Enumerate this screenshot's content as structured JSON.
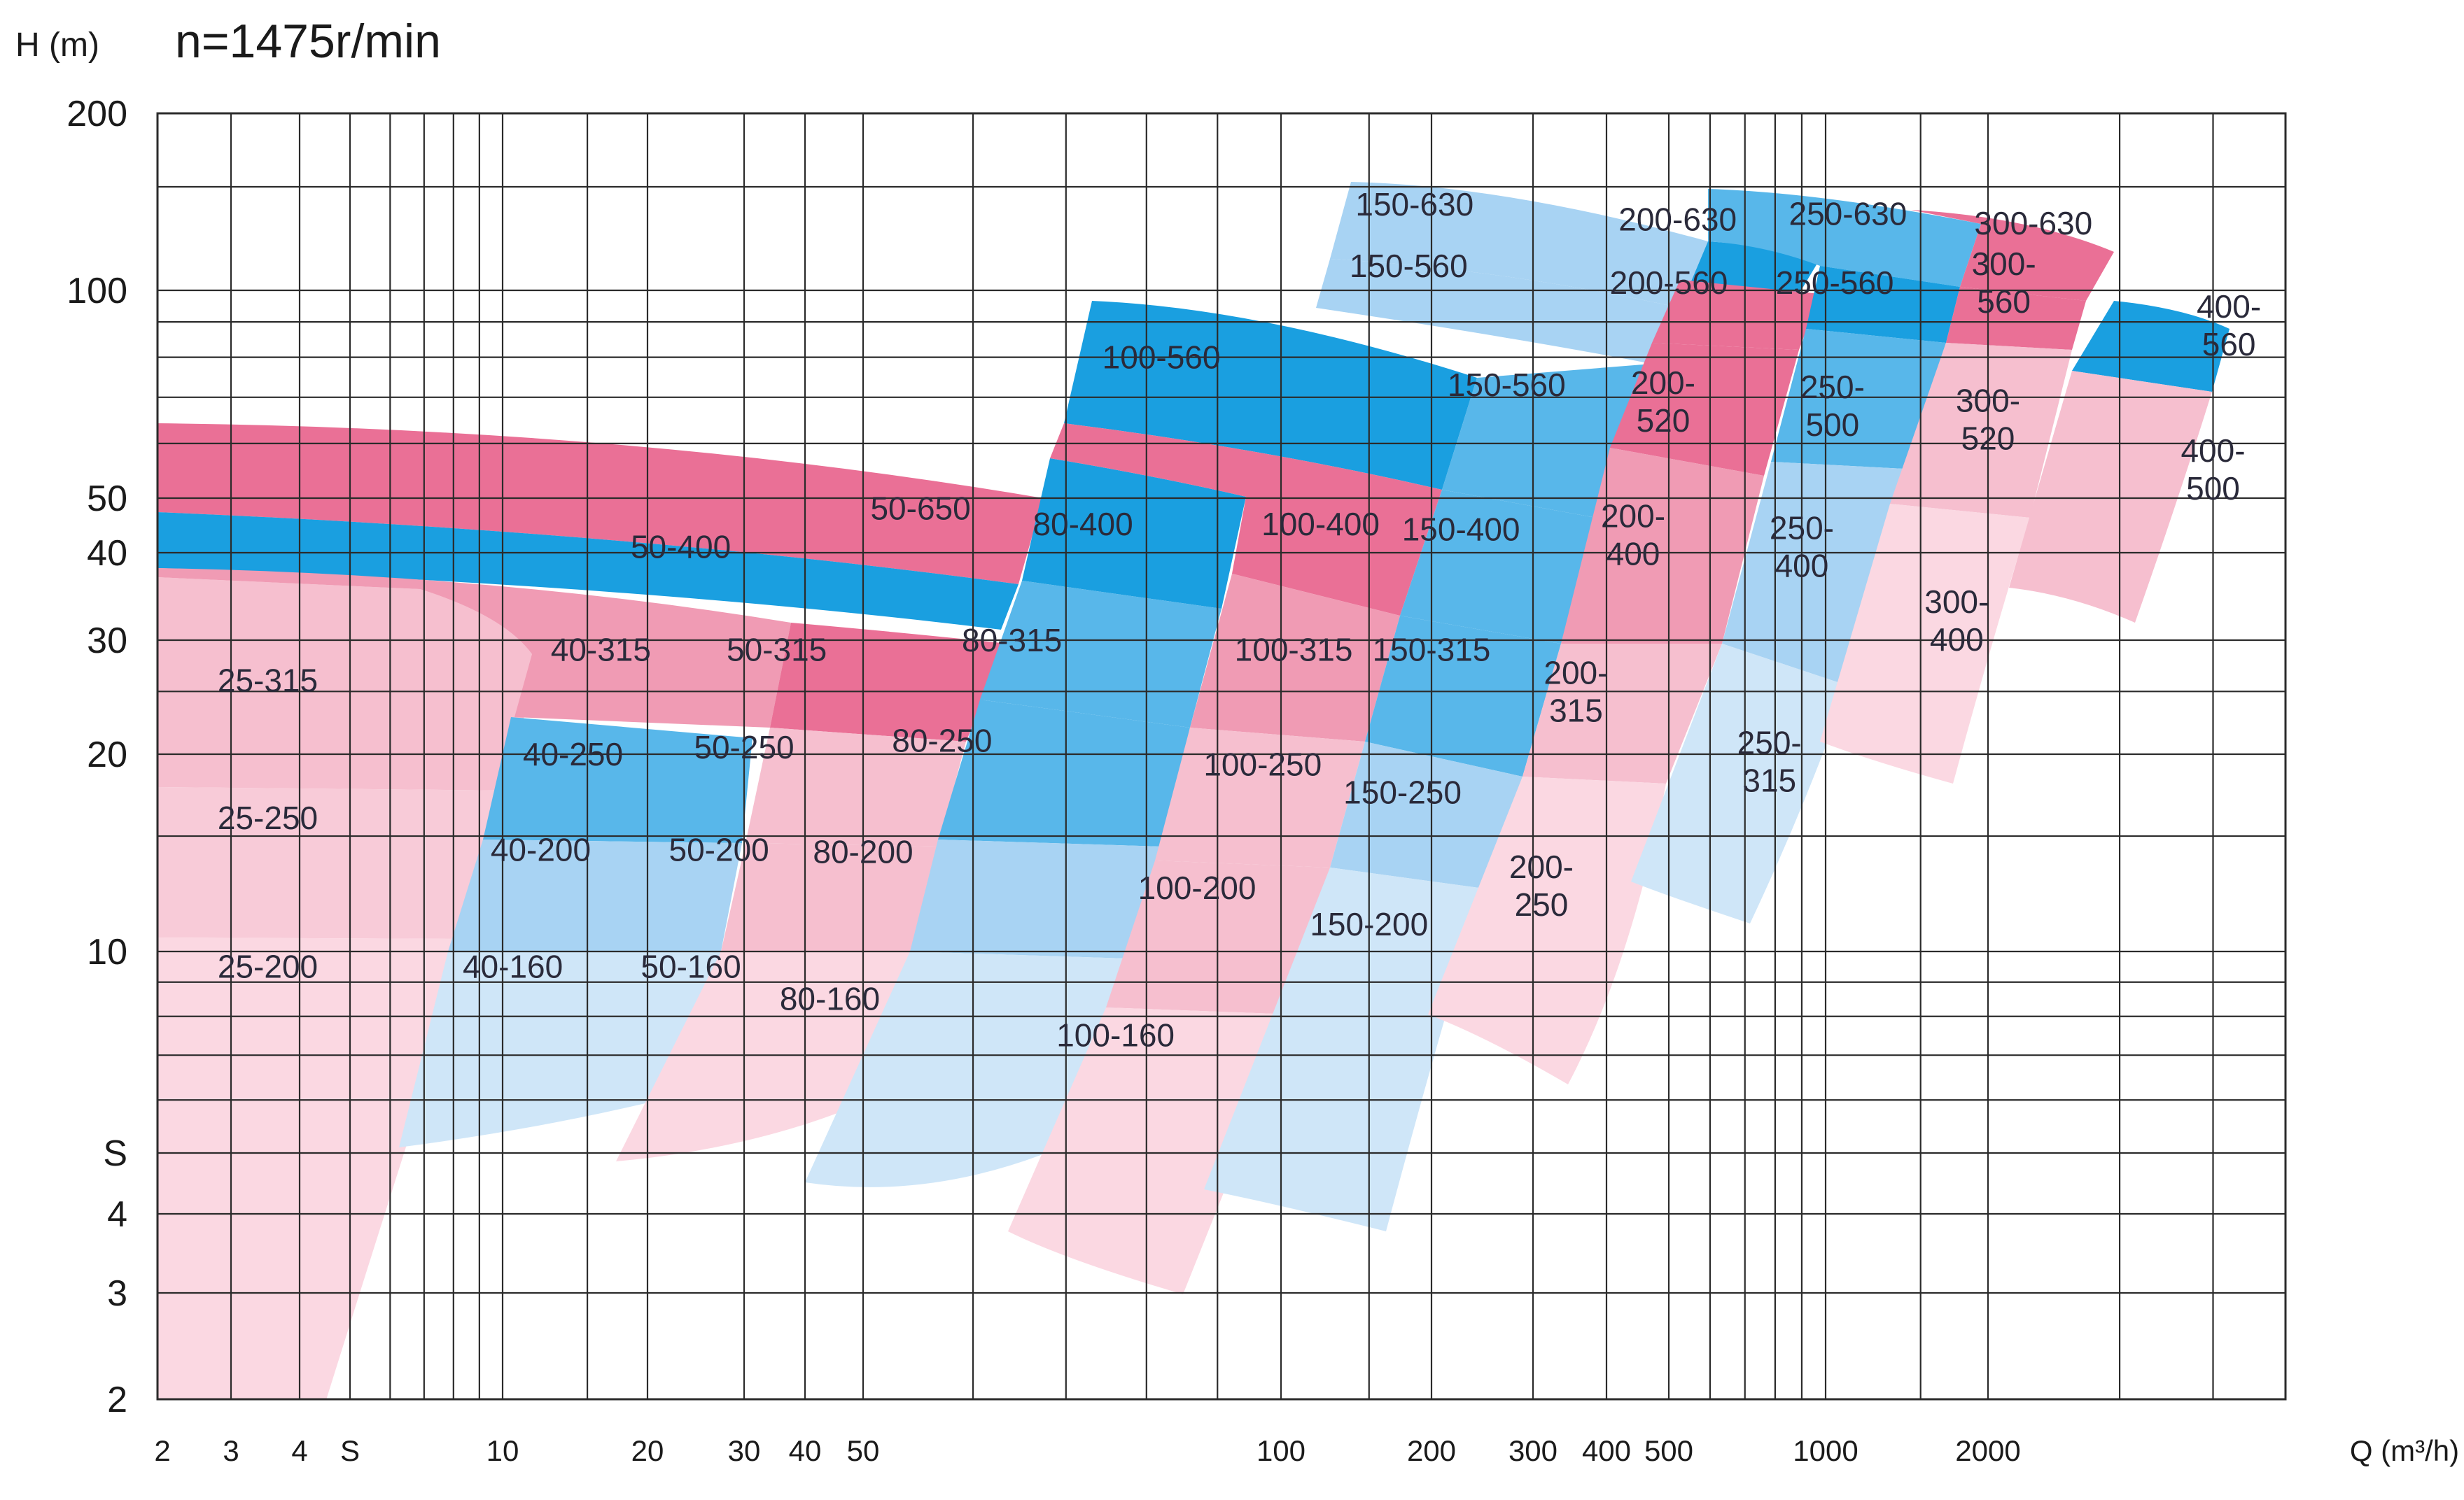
{
  "chart_data": {
    "type": "area",
    "title": "n=1475r/min",
    "ylabel": "H (m)",
    "xlabel": "Q (m³/h)",
    "x_scale": "log",
    "y_scale": "log",
    "xlim": [
      2,
      10000
    ],
    "ylim": [
      2,
      200
    ],
    "grid": true,
    "x_ticks": [
      {
        "value": 2,
        "label": "2"
      },
      {
        "value": 3,
        "label": "3"
      },
      {
        "value": 4,
        "label": "4"
      },
      {
        "value": 5,
        "label": "S"
      },
      {
        "value": 10,
        "label": "10"
      },
      {
        "value": 20,
        "label": "20"
      },
      {
        "value": 30,
        "label": "30"
      },
      {
        "value": 40,
        "label": "40"
      },
      {
        "value": 50,
        "label": "50"
      },
      {
        "value": 100,
        "label": "100"
      },
      {
        "value": 200,
        "label": "200"
      },
      {
        "value": 300,
        "label": "300"
      },
      {
        "value": 400,
        "label": "400"
      },
      {
        "value": 500,
        "label": "500"
      },
      {
        "value": 1000,
        "label": "1000"
      },
      {
        "value": 2000,
        "label": "2000"
      }
    ],
    "y_ticks": [
      {
        "value": 2,
        "label": "2"
      },
      {
        "value": 3,
        "label": "3"
      },
      {
        "value": 4,
        "label": "4"
      },
      {
        "value": 5,
        "label": "S"
      },
      {
        "value": 10,
        "label": "10"
      },
      {
        "value": 20,
        "label": "20"
      },
      {
        "value": 30,
        "label": "30"
      },
      {
        "value": 40,
        "label": "40"
      },
      {
        "value": 50,
        "label": "50"
      },
      {
        "value": 100,
        "label": "100"
      },
      {
        "value": 200,
        "label": "200"
      }
    ],
    "x_grid": [
      3,
      4,
      5,
      6,
      7,
      8,
      9,
      10,
      15,
      20,
      30,
      40,
      50,
      60,
      70,
      80,
      90,
      100,
      150,
      200,
      300,
      400,
      500,
      600,
      700,
      800,
      900,
      1000,
      1500,
      2000,
      3000,
      4000,
      5000
    ],
    "y_grid": [
      3,
      4,
      5,
      6,
      7,
      8,
      9,
      10,
      15,
      20,
      25,
      30,
      40,
      50,
      60,
      70,
      80,
      90,
      100,
      150
    ],
    "colors": {
      "blue_dark": "#1a9fe0",
      "blue_mid": "#58b7ea",
      "blue_light": "#a8d3f3",
      "blue_pale": "#cfe6f8",
      "pink_dark": "#ea7096",
      "pink_mid": "#f09bb4",
      "pink_light": "#f6bfcf",
      "pink_pale": "#fbd8e2"
    },
    "zones": [
      {
        "label": "25-315",
        "x": 3.5,
        "y": 26,
        "color": "#f6bfcf"
      },
      {
        "label": "25-250",
        "x": 3.5,
        "y": 16,
        "color": "#f8cbd8"
      },
      {
        "label": "25-200",
        "x": 3.5,
        "y": 9.5,
        "color": "#fbd8e2"
      },
      {
        "label": "40-315",
        "x": 16,
        "y": 29,
        "color": "#f09bb4"
      },
      {
        "label": "40-250",
        "x": 14,
        "y": 20,
        "color": "#58b7ea"
      },
      {
        "label": "40-200",
        "x": 12,
        "y": 14.3,
        "color": "#a8d3f3"
      },
      {
        "label": "40-160",
        "x": 10.5,
        "y": 9.5,
        "color": "#cfe6f8"
      },
      {
        "label": "50-650",
        "x": 55,
        "y": 48,
        "color": "#ea7096"
      },
      {
        "label": "50-400",
        "x": 23,
        "y": 41,
        "color": "#1a9fe0"
      },
      {
        "label": "50-315",
        "x": 35,
        "y": 29,
        "color": "#ea7096"
      },
      {
        "label": "50-250",
        "x": 30,
        "y": 20.5,
        "color": "#f6bfcf"
      },
      {
        "label": "50-200",
        "x": 27,
        "y": 14.3,
        "color": "#f6bfcf"
      },
      {
        "label": "50-160",
        "x": 24,
        "y": 9.5,
        "color": "#fbd8e2"
      },
      {
        "label": "80-400",
        "x": 72,
        "y": 45,
        "color": "#1a9fe0"
      },
      {
        "label": "80-315",
        "x": 64,
        "y": 30,
        "color": "#58b7ea"
      },
      {
        "label": "80-250",
        "x": 57,
        "y": 21,
        "color": "#58b7ea"
      },
      {
        "label": "80-200",
        "x": 50,
        "y": 14.2,
        "color": "#a8d3f3"
      },
      {
        "label": "80-160",
        "x": 44,
        "y": 8.5,
        "color": "#cfe6f8"
      },
      {
        "label": "100-560",
        "x": 82,
        "y": 80,
        "color": "#1a9fe0"
      },
      {
        "label": "100-400",
        "x": 120,
        "y": 45,
        "color": "#ea7096"
      },
      {
        "label": "100-315",
        "x": 106,
        "y": 29,
        "color": "#f09bb4"
      },
      {
        "label": "100-250",
        "x": 97,
        "y": 19.3,
        "color": "#f6bfcf"
      },
      {
        "label": "100-200",
        "x": 87,
        "y": 12.5,
        "color": "#f6bfcf"
      },
      {
        "label": "100-160",
        "x": 76,
        "y": 7.5,
        "color": "#fbd8e2"
      },
      {
        "label": "150-630",
        "x": 185,
        "y": 140,
        "color": "#a8d3f3"
      },
      {
        "label": "150-560",
        "x": 180,
        "y": 110,
        "color": "#a8d3f3"
      },
      {
        "label": "150-560",
        "x": 270,
        "y": 73,
        "color": "#58b7ea"
      },
      {
        "label": "150-400",
        "x": 225,
        "y": 44,
        "color": "#58b7ea"
      },
      {
        "label": "150-315",
        "x": 200,
        "y": 29,
        "color": "#58b7ea"
      },
      {
        "label": "150-250",
        "x": 175,
        "y": 17.5,
        "color": "#a8d3f3"
      },
      {
        "label": "150-200",
        "x": 150,
        "y": 11,
        "color": "#cfe6f8"
      },
      {
        "label": "200-630",
        "x": 520,
        "y": 132,
        "color": "#1a9fe0"
      },
      {
        "label": "200-560",
        "x": 500,
        "y": 103,
        "color": "#ea7096"
      },
      {
        "label": "200-\n520",
        "x": 490,
        "y": 69,
        "color": "#ea7096"
      },
      {
        "label": "200-\n400",
        "x": 440,
        "y": 43,
        "color": "#f09bb4"
      },
      {
        "label": "200-\n315",
        "x": 355,
        "y": 25,
        "color": "#f6bfcf"
      },
      {
        "label": "200-\n250",
        "x": 310,
        "y": 12.6,
        "color": "#fbd8e2"
      },
      {
        "label": "250-630",
        "x": 1100,
        "y": 135,
        "color": "#58b7ea"
      },
      {
        "label": "250-560",
        "x": 1040,
        "y": 103,
        "color": "#1a9fe0"
      },
      {
        "label": "250-\n500",
        "x": 1030,
        "y": 68,
        "color": "#58b7ea"
      },
      {
        "label": "250-\n400",
        "x": 900,
        "y": 41,
        "color": "#a8d3f3"
      },
      {
        "label": "250-\n315",
        "x": 780,
        "y": 19.5,
        "color": "#cfe6f8"
      },
      {
        "label": "300-630",
        "x": 2300,
        "y": 130,
        "color": "#ea7096"
      },
      {
        "label": "300-\n560",
        "x": 2100,
        "y": 103,
        "color": "#ea7096"
      },
      {
        "label": "300-\n520",
        "x": 2000,
        "y": 65,
        "color": "#f6bfcf"
      },
      {
        "label": "300-\n400",
        "x": 1750,
        "y": 32,
        "color": "#fbd8e2"
      },
      {
        "label": "400-\n560",
        "x": 4200,
        "y": 89,
        "color": "#1a9fe0"
      },
      {
        "label": "400-\n500",
        "x": 4000,
        "y": 55,
        "color": "#f6bfcf"
      }
    ]
  }
}
